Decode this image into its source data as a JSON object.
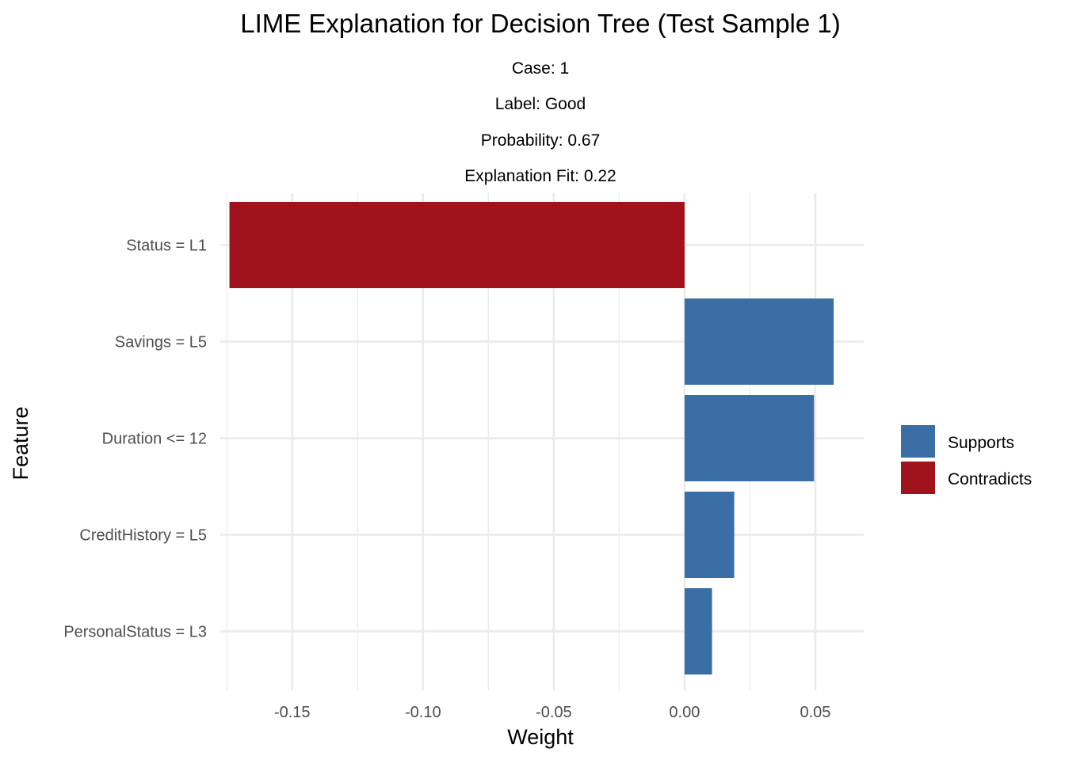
{
  "chart_data": {
    "type": "bar",
    "orientation": "horizontal",
    "title": "LIME Explanation for Decision Tree (Test Sample 1)",
    "subtitles": [
      "Case: 1",
      "Label: Good",
      "Probability: 0.67",
      "Explanation Fit: 0.22"
    ],
    "xlabel": "Weight",
    "ylabel": "Feature",
    "xlim": [
      -0.1775,
      0.0685
    ],
    "xticks": [
      -0.15,
      -0.1,
      -0.05,
      0.0,
      0.05
    ],
    "xtick_labels": [
      "-0.15",
      "-0.10",
      "-0.05",
      "0.00",
      "0.05"
    ],
    "categories": [
      "Status = L1",
      "Savings = L5",
      "Duration <= 12",
      "CreditHistory = L5",
      "PersonalStatus = L3"
    ],
    "values": [
      -0.174,
      0.057,
      0.0495,
      0.019,
      0.0105
    ],
    "groups": [
      "Contradicts",
      "Supports",
      "Supports",
      "Supports",
      "Supports"
    ],
    "legend": {
      "position": "right",
      "entries": [
        {
          "name": "Supports",
          "color": "#3a6ea5"
        },
        {
          "name": "Contradicts",
          "color": "#a0121c"
        }
      ]
    },
    "grid": true
  }
}
